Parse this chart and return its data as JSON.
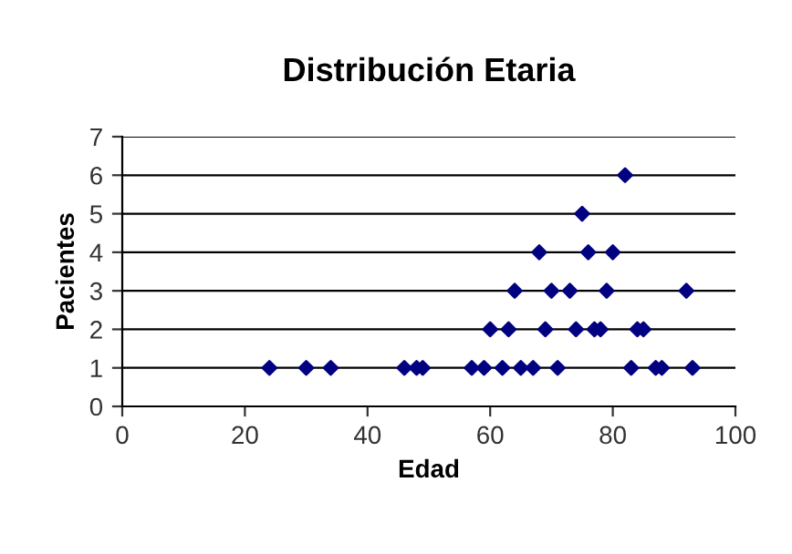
{
  "chart_data": {
    "type": "scatter",
    "title": "Distribución Etaria",
    "xlabel": "Edad",
    "ylabel": "Pacientes",
    "x": [
      24,
      30,
      34,
      46,
      48,
      49,
      57,
      59,
      62,
      65,
      67,
      71,
      83,
      87,
      88,
      93,
      60,
      63,
      69,
      74,
      77,
      78,
      84,
      85,
      64,
      70,
      73,
      79,
      92,
      68,
      76,
      80,
      75,
      82
    ],
    "values": [
      1,
      1,
      1,
      1,
      1,
      1,
      1,
      1,
      1,
      1,
      1,
      1,
      1,
      1,
      1,
      1,
      2,
      2,
      2,
      2,
      2,
      2,
      2,
      2,
      3,
      3,
      3,
      3,
      3,
      4,
      4,
      4,
      5,
      6
    ],
    "color": "#000080",
    "marker": "diamond",
    "xlim": [
      0,
      100
    ],
    "xticks": [
      0,
      20,
      40,
      60,
      80,
      100
    ],
    "ylim": [
      0,
      7
    ],
    "yticks": [
      0,
      1,
      2,
      3,
      4,
      5,
      6,
      7
    ],
    "grid": "y",
    "legend": false
  }
}
